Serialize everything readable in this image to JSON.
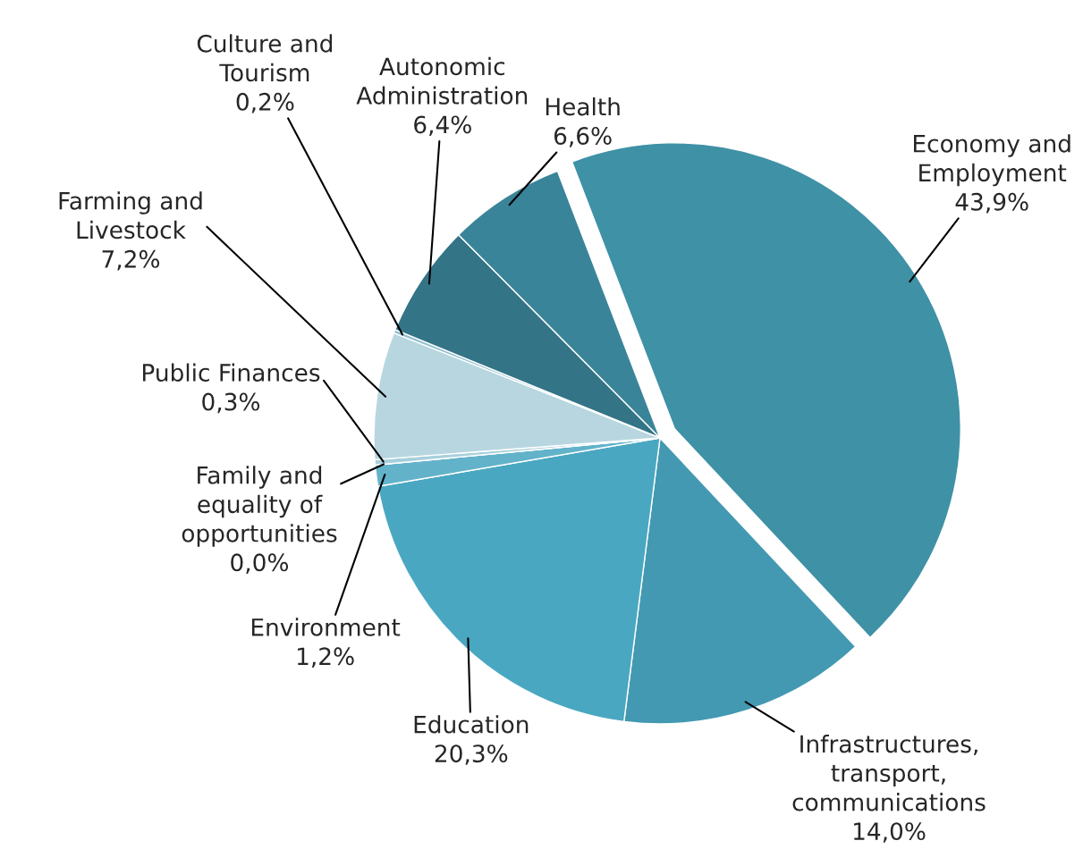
{
  "chart_data": {
    "type": "pie",
    "categories": [
      "Economy and\nEmployment",
      "Infrastructures,\ntransport,\ncommunications",
      "Education",
      "Environment",
      "Family and\nequality of\nopportunities",
      "Public Finances",
      "Farming and\nLivestock",
      "Culture and\nTourism",
      "Autonomic\nAdministration",
      "Health"
    ],
    "values": [
      43.9,
      14.0,
      20.3,
      1.2,
      0.0,
      0.3,
      7.2,
      0.2,
      6.4,
      6.6
    ],
    "value_labels": [
      "43,9%",
      "14,0%",
      "20,3%",
      "1,2%",
      "0,0%",
      "0,3%",
      "7,2%",
      "0,2%",
      "6,4%",
      "6,6%"
    ],
    "colors": [
      "#3f91a6",
      "#4399b1",
      "#4aa7c1",
      "#62b3ca",
      "#8cc4d4",
      "#a8d0dc",
      "#b7d6e0",
      "#8fbfcf",
      "#337486",
      "#3a8499"
    ]
  }
}
